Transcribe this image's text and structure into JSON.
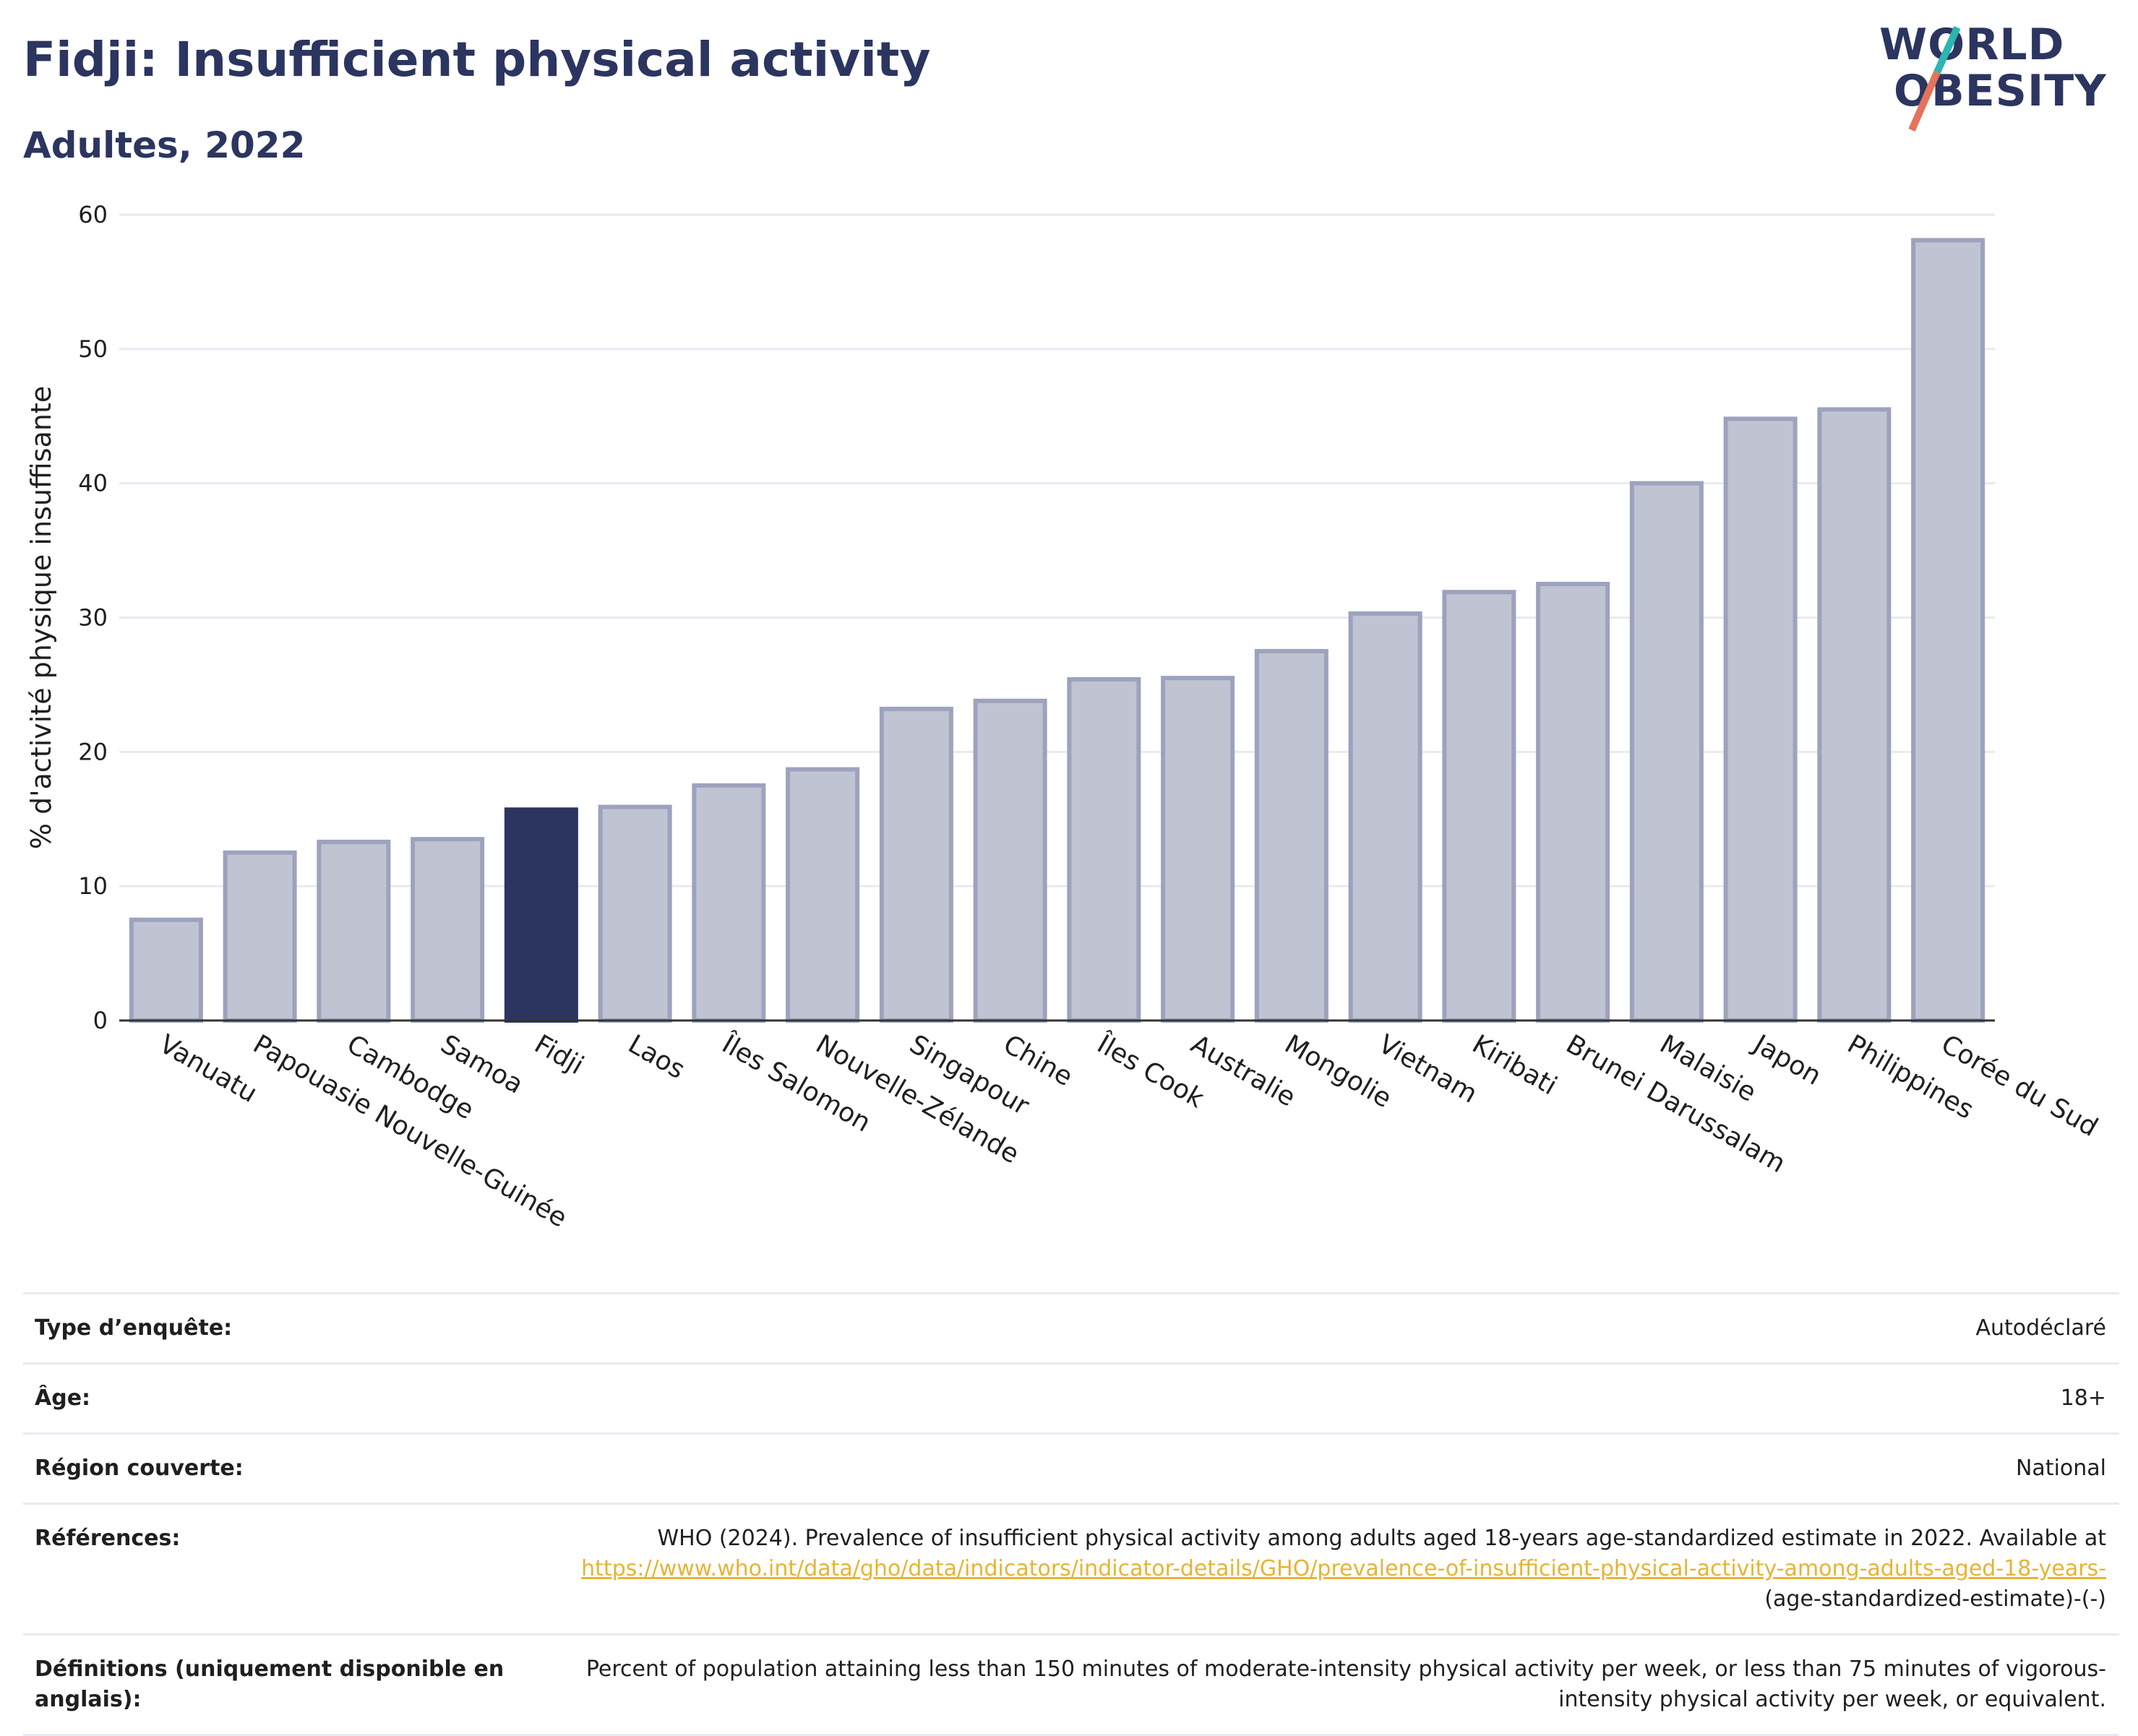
{
  "header": {
    "title": "Fidji: Insufficient physical activity",
    "subtitle": "Adultes, 2022"
  },
  "logo": {
    "line1": "WORLD",
    "line2": "OBESITY"
  },
  "colors": {
    "highlight": "#2b3560",
    "bar_fill": "#c0c3d2",
    "bar_stroke": "#9da2bd",
    "grid": "#e8eaf2",
    "accent_link": "#e8b334",
    "logo_slash_top": "#2db5b0",
    "logo_slash_bottom": "#e5735c"
  },
  "chart_data": {
    "type": "bar",
    "title": "",
    "xlabel": "",
    "ylabel": "% d'activité physique insuffisante",
    "ylim": [
      0,
      60
    ],
    "yticks": [
      0,
      10,
      20,
      30,
      40,
      50,
      60
    ],
    "grid": true,
    "highlight": "Fidji",
    "categories": [
      "Vanuatu",
      "Papouasie Nouvelle-Guinée",
      "Cambodge",
      "Samoa",
      "Fidji",
      "Laos",
      "Îles Salomon",
      "Nouvelle-Zélande",
      "Singapour",
      "Chine",
      "Îles Cook",
      "Australie",
      "Mongolie",
      "Vietnam",
      "Kiribati",
      "Brunei Darussalam",
      "Malaisie",
      "Japon",
      "Philippines",
      "Corée du Sud"
    ],
    "values": [
      7.5,
      12.5,
      13.3,
      13.5,
      15.7,
      15.9,
      17.5,
      18.7,
      23.2,
      23.8,
      25.4,
      25.5,
      27.5,
      30.3,
      31.9,
      32.5,
      40.0,
      44.8,
      45.5,
      58.1
    ]
  },
  "info_table": [
    {
      "key": "Type d’enquête:",
      "value": "Autodéclaré"
    },
    {
      "key": "Âge:",
      "value": "18+"
    },
    {
      "key": "Région couverte:",
      "value": "National"
    },
    {
      "key": "Références:",
      "value": "WHO (2024). Prevalence of insufficient physical activity among adults aged 18-years age-standardized estimate in 2022. Available at",
      "link": "https://www.who.int/data/gho/data/indicators/indicator-details/GHO/prevalence-of-insufficient-physical-activity-among-adults-aged-18-years-",
      "suffix": "(age-standardized-estimate)-(-)"
    },
    {
      "key": "Définitions (uniquement disponible en anglais):",
      "value": "Percent of population attaining less than 150 minutes of moderate-intensity physical activity per week, or less than 75 minutes of vigorous-intensity physical activity per week, or equivalent."
    }
  ]
}
